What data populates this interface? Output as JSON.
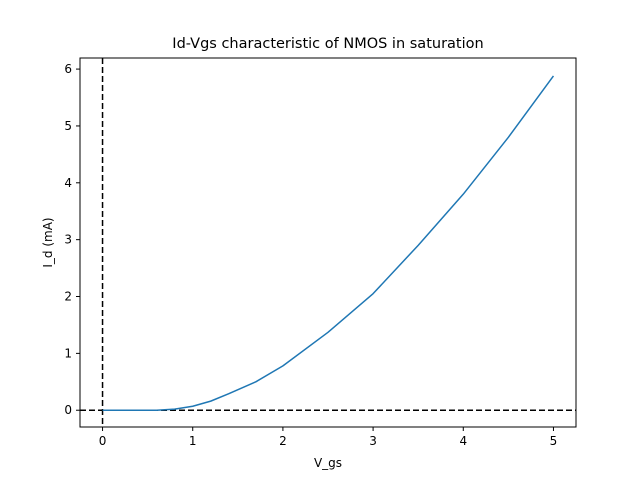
{
  "chart_data": {
    "type": "line",
    "title": "Id-Vgs characteristic of NMOS in saturation",
    "xlabel": "V_gs",
    "ylabel": "I_d (mA)",
    "xlim": [
      -0.25,
      5.25
    ],
    "ylim": [
      -0.295,
      6.195
    ],
    "xticks": [
      0,
      1,
      2,
      3,
      4,
      5
    ],
    "yticks": [
      0,
      1,
      2,
      3,
      4,
      5,
      6
    ],
    "grid": false,
    "line_color": "#1f77b4",
    "reference_lines": [
      {
        "orientation": "vertical",
        "value": 0,
        "style": "dashed",
        "color": "#000000"
      },
      {
        "orientation": "horizontal",
        "value": 0,
        "style": "dashed",
        "color": "#000000"
      }
    ],
    "series": [
      {
        "x": [
          0,
          0.2,
          0.4,
          0.6,
          0.8,
          1.0,
          1.2,
          1.4,
          1.7,
          2.0,
          2.5,
          3.0,
          3.5,
          4.0,
          4.5,
          5.0
        ],
        "y": [
          0,
          0,
          0,
          0,
          0.02,
          0.07,
          0.16,
          0.29,
          0.5,
          0.78,
          1.37,
          2.05,
          2.9,
          3.8,
          4.8,
          5.88
        ]
      }
    ]
  }
}
